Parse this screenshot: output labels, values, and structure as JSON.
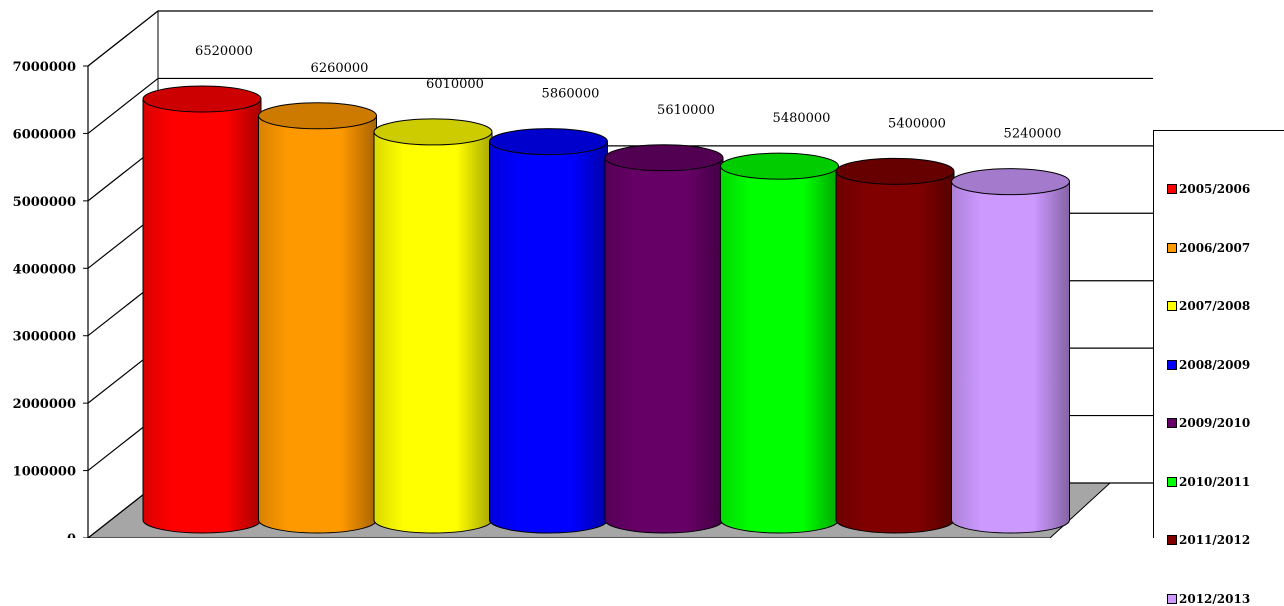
{
  "chart_data": {
    "type": "bar",
    "style": "3d-cylinder",
    "categories": [
      "2005/2006",
      "2006/2007",
      "2007/2008",
      "2008/2009",
      "2009/2010",
      "2010/2011",
      "2011/2012",
      "2012/2013"
    ],
    "values": [
      6520000,
      6260000,
      6010000,
      5860000,
      5610000,
      5480000,
      5400000,
      5240000
    ],
    "colors": [
      "#ff0000",
      "#ff9900",
      "#ffff00",
      "#0000ff",
      "#660066",
      "#00ff00",
      "#800000",
      "#cc99ff"
    ],
    "data_labels": [
      "6520000",
      "6260000",
      "6010000",
      "5860000",
      "5610000",
      "5480000",
      "5400000",
      "5240000"
    ],
    "yticks": [
      "0",
      "1000000",
      "2000000",
      "3000000",
      "4000000",
      "5000000",
      "6000000",
      "7000000"
    ],
    "ylim": [
      0,
      7000000
    ],
    "title": "",
    "xlabel": "",
    "ylabel": "",
    "grid": true,
    "legend_position": "right"
  }
}
